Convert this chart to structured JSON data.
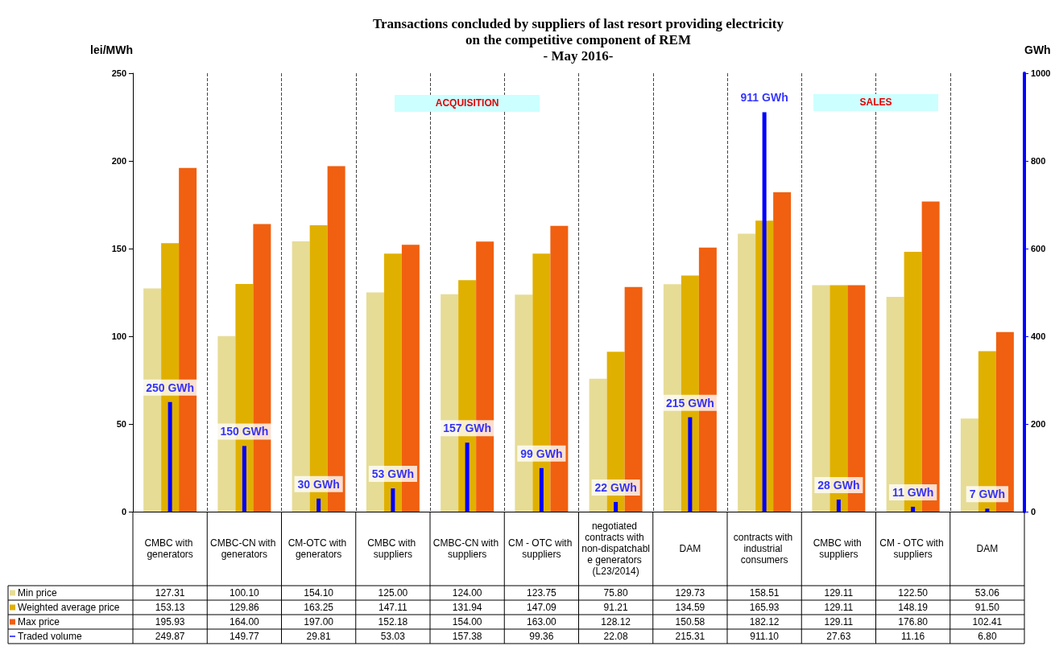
{
  "chart_data": {
    "type": "bar",
    "title": "Transactions concluded by suppliers of last resort providing electricity\non the competitive component of REM\n- May 2016-",
    "ylabel": "lei/MWh",
    "y2label": "GWh",
    "categories": [
      "CMBC with generators",
      "CMBC-CN with generators",
      "CM-OTC with generators",
      "CMBC with suppliers",
      "CMBC-CN with suppliers",
      "CM - OTC with suppliers",
      "negotiated contracts with non-dispatchable generators (L23/2014)",
      "DAM",
      "contracts with industrial consumers",
      "CMBC with suppliers",
      "CM - OTC with suppliers",
      "DAM"
    ],
    "series": [
      {
        "name": "Min price",
        "color": "#e6dc96",
        "values": [
          127.31,
          100.1,
          154.1,
          125.0,
          124.0,
          123.75,
          75.8,
          129.73,
          158.51,
          129.11,
          122.5,
          53.06
        ],
        "value_labels": [
          "127.31",
          "100.10",
          "154.10",
          "125.00",
          "124.00",
          "123.75",
          "75.80",
          "129.73",
          "158.51",
          "129.11",
          "122.50",
          "53.06"
        ]
      },
      {
        "name": "Weighted average price",
        "color": "#e0b000",
        "values": [
          153.13,
          129.86,
          163.25,
          147.11,
          131.94,
          147.09,
          91.21,
          134.59,
          165.93,
          129.11,
          148.19,
          91.5
        ],
        "value_labels": [
          "153.13",
          "129.86",
          "163.25",
          "147.11",
          "131.94",
          "147.09",
          "91.21",
          "134.59",
          "165.93",
          "129.11",
          "148.19",
          "91.50"
        ]
      },
      {
        "name": "Max price",
        "color": "#f06010",
        "values": [
          195.93,
          164.0,
          197.0,
          152.18,
          154.0,
          163.0,
          128.12,
          150.58,
          182.12,
          129.11,
          176.8,
          102.41
        ],
        "value_labels": [
          "195.93",
          "164.00",
          "197.00",
          "152.18",
          "154.00",
          "163.00",
          "128.12",
          "150.58",
          "182.12",
          "129.11",
          "176.80",
          "102.41"
        ]
      },
      {
        "name": "Traded volume",
        "color": "#0000ff",
        "axis": "y2",
        "values": [
          249.87,
          149.77,
          29.81,
          53.03,
          157.38,
          99.36,
          22.08,
          215.31,
          911.1,
          27.63,
          11.16,
          6.8
        ],
        "value_labels": [
          "249.87",
          "149.77",
          "29.81",
          "53.03",
          "157.38",
          "99.36",
          "22.08",
          "215.31",
          "911.10",
          "27.63",
          "11.16",
          "6.80"
        ]
      }
    ],
    "ylim": [
      0,
      250
    ],
    "yticks": [
      0,
      50,
      100,
      150,
      200,
      250
    ],
    "y2lim": [
      0,
      1000
    ],
    "y2ticks": [
      0,
      200,
      400,
      600,
      800,
      1000
    ],
    "annotations": [
      "ACQUISITION",
      "SALES",
      "250 GWh",
      "150 GWh",
      "30 GWh",
      "53 GWh",
      "157 GWh",
      "99 GWh",
      "22 GWh",
      "215 GWh",
      "911 GWh",
      "28 GWh",
      "11 GWh",
      "7 GWh"
    ],
    "grid": "x",
    "legend": "bottom left"
  }
}
